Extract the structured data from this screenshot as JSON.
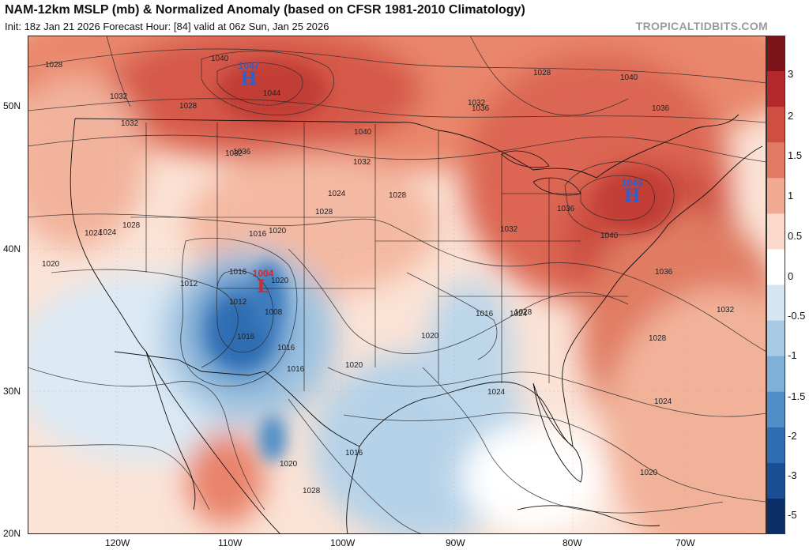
{
  "header": {
    "title": "NAM-12km MSLP (mb) & Normalized Anomaly (based on CFSR 1981-2010 Climatology)",
    "subtitle": "Init: 18z Jan 21 2026   Forecast Hour: [84]   valid at 06z Sun, Jan 25 2026",
    "brand": "TROPICALTIDBITS.COM"
  },
  "map": {
    "latitude_labels": [
      "50N",
      "40N",
      "30N",
      "20N"
    ],
    "longitude_labels": [
      "120W",
      "110W",
      "100W",
      "90W",
      "80W",
      "70W"
    ],
    "pressure_centers": [
      {
        "type": "H",
        "value": "1047",
        "color": "#2f5fc8"
      },
      {
        "type": "H",
        "value": "1043",
        "color": "#2f5fc8"
      },
      {
        "type": "L",
        "value": "1004",
        "color": "#d02a2a"
      }
    ],
    "isobar_labels": [
      "1028",
      "1040",
      "1044",
      "1032",
      "1028",
      "1032",
      "1036",
      "1028",
      "1040",
      "1032",
      "1036",
      "1036",
      "1040",
      "1032",
      "1028",
      "1032",
      "1028",
      "1024",
      "1016",
      "1020",
      "1012",
      "1016",
      "1020",
      "1012",
      "1008",
      "1016",
      "1016",
      "1020",
      "1024",
      "1028",
      "1020",
      "1016",
      "1024",
      "1028",
      "1032",
      "1036",
      "1040",
      "1036",
      "1032",
      "1028",
      "1024",
      "1020",
      "1016",
      "1016",
      "1020",
      "1028",
      "1024",
      "1020",
      "1024"
    ]
  },
  "colorbar": {
    "labels": [
      "3",
      "2",
      "1.5",
      "1",
      "0.5",
      "0",
      "-0.5",
      "-1",
      "-1.5",
      "-2",
      "-3",
      "-5"
    ],
    "colors": [
      "#7a1418",
      "#b4282c",
      "#cf4e42",
      "#e27a63",
      "#f0aa91",
      "#fad8ca",
      "#ffffff",
      "#d5e6f2",
      "#a9cae3",
      "#7fb0d7",
      "#4f8ec6",
      "#2f6db2",
      "#1a4e94",
      "#0c2e66"
    ]
  }
}
